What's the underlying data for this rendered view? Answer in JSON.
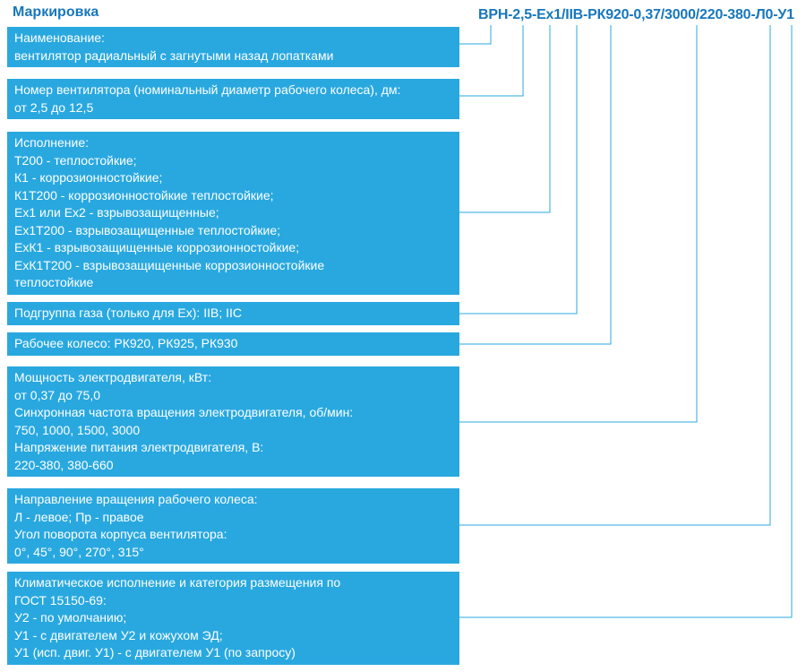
{
  "title": "Маркировка",
  "code": {
    "full": "ВРН-2,5-Ex1/IIB-РК920-0,37/3000/220-380-Л0-У1"
  },
  "colors": {
    "accent-blue": "#1777bc",
    "box-cyan": "#29a8e0",
    "line-cyan": "#29a8e0",
    "box-text": "#ffffff",
    "background": "#ffffff"
  },
  "boxes": [
    {
      "lines": [
        "Наименование:",
        "вентилятор радиальный с загнутыми назад лопатками"
      ]
    },
    {
      "lines": [
        "Номер вентилятора (номинальный диаметр рабочего колеса), дм:",
        "от 2,5 до 12,5"
      ]
    },
    {
      "lines": [
        "Исполнение:",
        "Т200 - теплостойкие;",
        "К1 - коррозионностойкие;",
        "К1Т200 - коррозионностойкие теплостойкие;",
        "Ех1 или Ех2 - взрывозащищенные;",
        "Ех1Т200 - взрывозащищенные теплостойкие;",
        "ЕхК1 - взрывозащищенные коррозионностойкие;",
        "ЕхК1Т200 - взрывозащищенные коррозионностойкие",
        "теплостойкие"
      ]
    },
    {
      "lines": [
        "Подгруппа газа (только для Ех): IIВ; IIС"
      ]
    },
    {
      "lines": [
        "Рабочее колесо: РК920, РК925, РК930"
      ]
    },
    {
      "lines": [
        "Мощность электродвигателя, кВт:",
        "от 0,37 до 75,0",
        "Синхронная частота вращения электродвигателя, об/мин:",
        "750, 1000, 1500, 3000",
        "Напряжение питания электродвигателя, В:",
        "220-380, 380-660"
      ]
    },
    {
      "lines": [
        "Направление вращения рабочего колеса:",
        "Л - левое; Пр - правое",
        "Угол поворота корпуса вентилятора:",
        "0°, 45°, 90°, 270°, 315°"
      ]
    },
    {
      "lines": [
        "Климатическое исполнение и категория размещения по",
        "ГОСТ 15150-69:",
        "У2 - по умолчанию;",
        "У1 - с двигателем У2 и кожухом ЭД;",
        "У1 (исп. двиг. У1) - с двигателем У1 (по запросу)"
      ]
    }
  ]
}
